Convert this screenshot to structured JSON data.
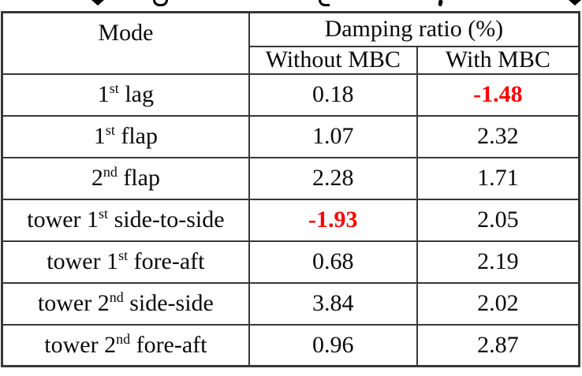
{
  "colors": {
    "negative_value": "#fe0000",
    "text": "#0a0a0a",
    "border": "#383838"
  },
  "table": {
    "header": {
      "mode": "Mode",
      "group": "Damping ratio (%)",
      "col_without": "Without MBC",
      "col_with": "With MBC"
    },
    "rows": [
      {
        "mode_prefix": "1",
        "mode_sup": "st",
        "mode_suffix": " lag",
        "without": "0.18",
        "with": "-1.48"
      },
      {
        "mode_prefix": "1",
        "mode_sup": "st",
        "mode_suffix": " flap",
        "without": "1.07",
        "with": "2.32"
      },
      {
        "mode_prefix": "2",
        "mode_sup": "nd",
        "mode_suffix": " flap",
        "without": "2.28",
        "with": "1.71"
      },
      {
        "mode_prefix": "tower 1",
        "mode_sup": "st",
        "mode_suffix": " side-to-side",
        "without": "-1.93",
        "with": "2.05"
      },
      {
        "mode_prefix": "tower 1",
        "mode_sup": "st",
        "mode_suffix": " fore-aft",
        "without": "0.68",
        "with": "2.19"
      },
      {
        "mode_prefix": "tower 2",
        "mode_sup": "nd",
        "mode_suffix": " side-side",
        "without": "3.84",
        "with": "2.02"
      },
      {
        "mode_prefix": "tower 2",
        "mode_sup": "nd",
        "mode_suffix": " fore-aft",
        "without": "0.96",
        "with": "2.87"
      }
    ]
  },
  "chart_data": {
    "type": "table",
    "columns": [
      "Mode",
      "Damping ratio (%) — Without MBC",
      "Damping ratio (%) — With MBC"
    ],
    "rows": [
      [
        "1st lag",
        0.18,
        -1.48
      ],
      [
        "1st flap",
        1.07,
        2.32
      ],
      [
        "2nd flap",
        2.28,
        1.71
      ],
      [
        "tower 1st side-to-side",
        -1.93,
        2.05
      ],
      [
        "tower 1st fore-aft",
        0.68,
        2.19
      ],
      [
        "tower 2nd side-side",
        3.84,
        2.02
      ],
      [
        "tower 2nd fore-aft",
        0.96,
        2.87
      ]
    ],
    "notes": "negative damping ratios rendered bold red"
  }
}
